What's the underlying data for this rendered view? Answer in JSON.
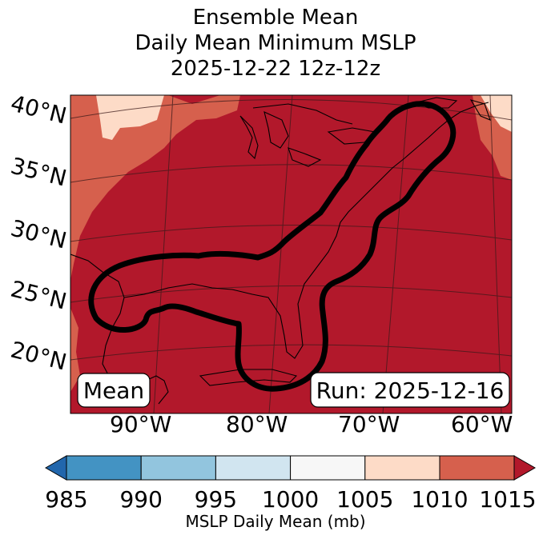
{
  "title": {
    "line1": "Ensemble Mean",
    "line2": "Daily Mean Minimum MSLP",
    "line3": "2025-12-22 12z-12z"
  },
  "map": {
    "latitude_labels": [
      "40°N",
      "35°N",
      "30°N",
      "25°N",
      "20°N"
    ],
    "longitude_labels": [
      "90°W",
      "80°W",
      "70°W",
      "60°W"
    ],
    "mean_box": "Mean",
    "run_box": "Run: 2025-12-16",
    "contour_color": "#000000",
    "field_colors": {
      "dominant": "#b2182b",
      "edge": "#d6604d",
      "light": "#fddbc7"
    }
  },
  "colorbar": {
    "ticks": [
      "985",
      "990",
      "995",
      "1000",
      "1005",
      "1010",
      "1015"
    ],
    "colors": [
      "#2166ac",
      "#4393c3",
      "#92c5de",
      "#d1e5f0",
      "#f7f7f7",
      "#fddbc7",
      "#d6604d",
      "#b2182b"
    ],
    "label": "MSLP Daily Mean (mb)"
  }
}
